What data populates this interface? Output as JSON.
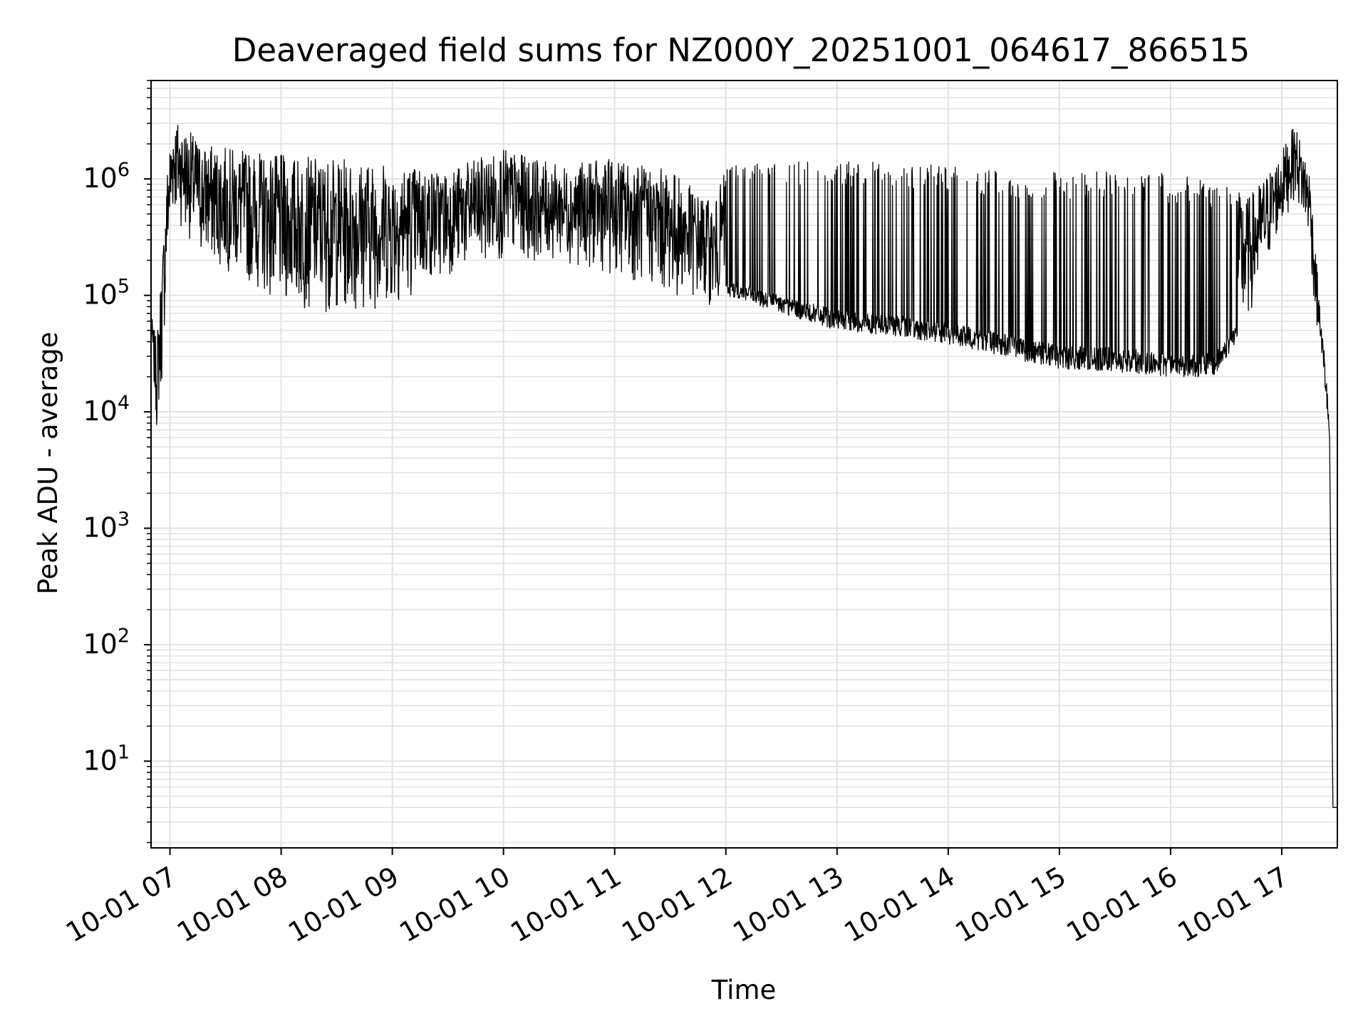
{
  "chart_data": {
    "type": "line",
    "title": "Deaveraged field sums for NZ000Y_20251001_064617_866515",
    "xlabel": "Time",
    "ylabel": "Peak ADU - average",
    "yscale": "log",
    "xlim_hours": [
      6.83,
      17.5
    ],
    "ylim": [
      1.8,
      7000000
    ],
    "grid": true,
    "line_color": "#000000",
    "x_tick_labels": [
      "10-01 07",
      "10-01 08",
      "10-01 09",
      "10-01 10",
      "10-01 11",
      "10-01 12",
      "10-01 13",
      "10-01 14",
      "10-01 15",
      "10-01 16",
      "10-01 17"
    ],
    "x_tick_hours": [
      7,
      8,
      9,
      10,
      11,
      12,
      13,
      14,
      15,
      16,
      17
    ],
    "y_ticks": [
      {
        "base": "10",
        "exp": "1",
        "value": 10
      },
      {
        "base": "10",
        "exp": "2",
        "value": 100
      },
      {
        "base": "10",
        "exp": "3",
        "value": 1000
      },
      {
        "base": "10",
        "exp": "4",
        "value": 10000
      },
      {
        "base": "10",
        "exp": "5",
        "value": 100000
      },
      {
        "base": "10",
        "exp": "6",
        "value": 1000000
      }
    ],
    "series": [
      {
        "name": "Peak ADU - average",
        "envelope_note": "dense noisy series; profile given as hour / baseline / peak",
        "profile": [
          {
            "h": 6.83,
            "base": 40000,
            "peak": 70000
          },
          {
            "h": 6.88,
            "base": 7000,
            "peak": 40000
          },
          {
            "h": 6.93,
            "base": 18000,
            "peak": 220000
          },
          {
            "h": 6.98,
            "base": 200000,
            "peak": 1500000
          },
          {
            "h": 7.03,
            "base": 500000,
            "peak": 3500000
          },
          {
            "h": 7.3,
            "base": 200000,
            "peak": 2000000
          },
          {
            "h": 7.6,
            "base": 150000,
            "peak": 1800000
          },
          {
            "h": 8.0,
            "base": 80000,
            "peak": 1600000
          },
          {
            "h": 8.5,
            "base": 70000,
            "peak": 1500000
          },
          {
            "h": 9.0,
            "base": 80000,
            "peak": 1400000
          },
          {
            "h": 9.5,
            "base": 150000,
            "peak": 1200000
          },
          {
            "h": 10.0,
            "base": 200000,
            "peak": 1800000
          },
          {
            "h": 10.5,
            "base": 200000,
            "peak": 1300000
          },
          {
            "h": 11.0,
            "base": 150000,
            "peak": 1500000
          },
          {
            "h": 11.5,
            "base": 100000,
            "peak": 1200000
          },
          {
            "h": 11.9,
            "base": 80000,
            "peak": 600000
          },
          {
            "h": 12.0,
            "base": 100000,
            "peak": 1300000
          },
          {
            "h": 12.5,
            "base": 70000,
            "peak": 1400000
          },
          {
            "h": 13.0,
            "base": 50000,
            "peak": 1400000
          },
          {
            "h": 13.5,
            "base": 45000,
            "peak": 1400000
          },
          {
            "h": 14.0,
            "base": 38000,
            "peak": 1300000
          },
          {
            "h": 14.5,
            "base": 30000,
            "peak": 1200000
          },
          {
            "h": 15.0,
            "base": 23000,
            "peak": 1200000
          },
          {
            "h": 15.5,
            "base": 22000,
            "peak": 1200000
          },
          {
            "h": 16.0,
            "base": 20000,
            "peak": 1100000
          },
          {
            "h": 16.4,
            "base": 20000,
            "peak": 1000000
          },
          {
            "h": 16.7,
            "base": 60000,
            "peak": 700000
          },
          {
            "h": 16.95,
            "base": 300000,
            "peak": 1400000
          },
          {
            "h": 17.12,
            "base": 700000,
            "peak": 3000000
          },
          {
            "h": 17.25,
            "base": 300000,
            "peak": 1200000
          },
          {
            "h": 17.3,
            "base": 60000,
            "peak": 300000
          },
          {
            "h": 17.35,
            "base": 40000,
            "peak": 60000
          },
          {
            "h": 17.4,
            "base": 10000,
            "peak": 25000
          },
          {
            "h": 17.43,
            "base": 6000,
            "peak": 6000
          },
          {
            "h": 17.46,
            "base": 4,
            "peak": 4
          },
          {
            "h": 17.5,
            "base": 4,
            "peak": 4
          }
        ]
      }
    ]
  }
}
